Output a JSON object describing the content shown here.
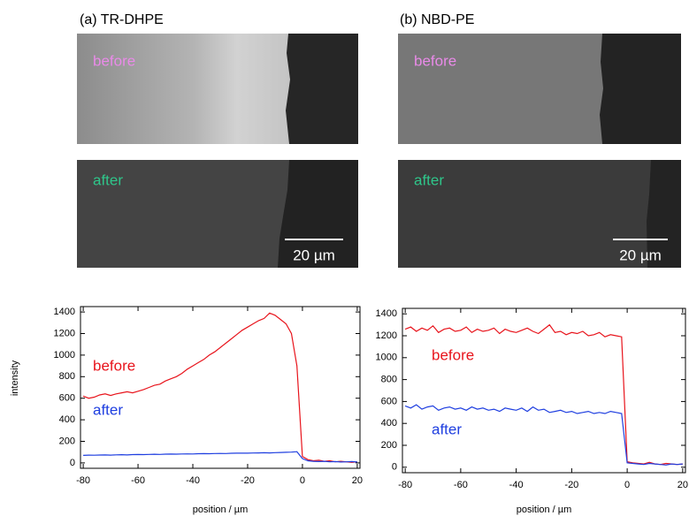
{
  "panels": [
    {
      "title": "(a) TR-DHPE",
      "labels": [
        "before",
        "after"
      ],
      "scale_bar": "20 µm"
    },
    {
      "title": "(b) NBD-PE",
      "labels": [
        "before",
        "after"
      ],
      "scale_bar": "20 µm"
    }
  ],
  "chart_data": [
    {
      "type": "line",
      "ylabel": "intensity",
      "xlabel": "position / µm",
      "x": [
        -80,
        -78,
        -76,
        -74,
        -72,
        -70,
        -68,
        -66,
        -64,
        -62,
        -60,
        -58,
        -56,
        -54,
        -52,
        -50,
        -48,
        -46,
        -44,
        -42,
        -40,
        -38,
        -36,
        -34,
        -32,
        -30,
        -28,
        -26,
        -24,
        -22,
        -20,
        -18,
        -16,
        -14,
        -12,
        -10,
        -8,
        -6,
        -4,
        -2,
        0,
        2,
        4,
        6,
        8,
        10,
        12,
        14,
        16,
        18,
        20
      ],
      "series": [
        {
          "name": "before",
          "color": "#e8141c",
          "values": [
            620,
            600,
            610,
            630,
            640,
            625,
            640,
            650,
            660,
            650,
            665,
            680,
            700,
            720,
            730,
            760,
            780,
            800,
            830,
            870,
            900,
            930,
            960,
            1000,
            1030,
            1070,
            1110,
            1150,
            1190,
            1230,
            1260,
            1290,
            1320,
            1340,
            1390,
            1370,
            1330,
            1290,
            1200,
            900,
            60,
            30,
            20,
            25,
            15,
            20,
            10,
            15,
            10,
            5,
            10
          ]
        },
        {
          "name": "after",
          "color": "#1f3fe0",
          "values": [
            70,
            72,
            71,
            73,
            74,
            72,
            75,
            76,
            74,
            77,
            78,
            77,
            79,
            80,
            79,
            81,
            82,
            81,
            83,
            84,
            83,
            85,
            86,
            85,
            87,
            88,
            87,
            89,
            90,
            91,
            90,
            92,
            93,
            94,
            93,
            95,
            97,
            98,
            100,
            104,
            40,
            20,
            15,
            12,
            15,
            10,
            12,
            8,
            10,
            12,
            8
          ]
        }
      ],
      "xlim": [
        -81,
        21
      ],
      "ylim": [
        -50,
        1450
      ],
      "xticks": [
        -80,
        -60,
        -40,
        -20,
        0,
        20
      ],
      "yticks": [
        0,
        200,
        400,
        600,
        800,
        1000,
        1200,
        1400
      ]
    },
    {
      "type": "line",
      "xlabel": "position / µm",
      "x": [
        -80,
        -78,
        -76,
        -74,
        -72,
        -70,
        -68,
        -66,
        -64,
        -62,
        -60,
        -58,
        -56,
        -54,
        -52,
        -50,
        -48,
        -46,
        -44,
        -42,
        -40,
        -38,
        -36,
        -34,
        -32,
        -30,
        -28,
        -26,
        -24,
        -22,
        -20,
        -18,
        -16,
        -14,
        -12,
        -10,
        -8,
        -6,
        -4,
        -2,
        0,
        2,
        4,
        6,
        8,
        10,
        12,
        14,
        16,
        18,
        20
      ],
      "series": [
        {
          "name": "before",
          "color": "#e8141c",
          "values": [
            1260,
            1280,
            1240,
            1270,
            1250,
            1290,
            1230,
            1260,
            1270,
            1240,
            1250,
            1280,
            1230,
            1260,
            1240,
            1250,
            1270,
            1220,
            1260,
            1240,
            1230,
            1250,
            1270,
            1240,
            1220,
            1260,
            1300,
            1230,
            1240,
            1210,
            1230,
            1220,
            1240,
            1200,
            1210,
            1230,
            1190,
            1210,
            1200,
            1190,
            50,
            40,
            35,
            30,
            45,
            30,
            25,
            35,
            30,
            25,
            30
          ]
        },
        {
          "name": "after",
          "color": "#1f3fe0",
          "values": [
            560,
            540,
            570,
            530,
            550,
            560,
            520,
            540,
            550,
            530,
            540,
            520,
            550,
            530,
            540,
            520,
            530,
            510,
            540,
            530,
            520,
            540,
            510,
            550,
            520,
            530,
            500,
            510,
            520,
            500,
            510,
            490,
            500,
            510,
            490,
            500,
            490,
            510,
            500,
            490,
            40,
            35,
            30,
            25,
            35,
            30,
            25,
            20,
            30,
            25,
            30
          ]
        }
      ],
      "xlim": [
        -81,
        21
      ],
      "ylim": [
        -50,
        1450
      ],
      "xticks": [
        -80,
        -60,
        -40,
        -20,
        0,
        20
      ],
      "yticks": [
        0,
        200,
        400,
        600,
        800,
        1000,
        1200,
        1400
      ]
    }
  ]
}
